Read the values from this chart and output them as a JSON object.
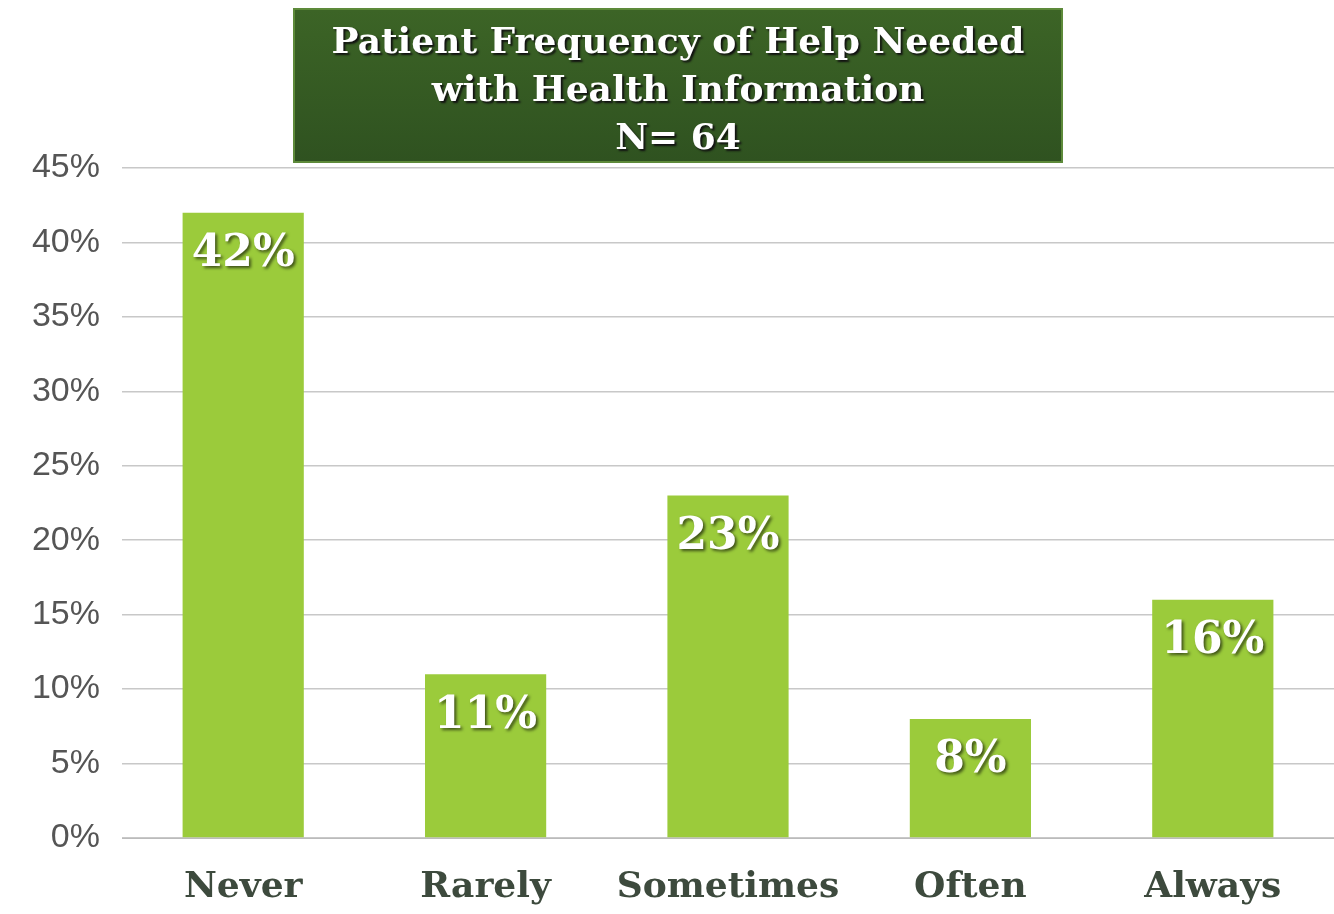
{
  "chart_data": {
    "type": "bar",
    "title": "Patient Frequency of Help Needed with Health Information",
    "subtitle": "N= 64",
    "categories": [
      "Never",
      "Rarely",
      "Sometimes",
      "Often",
      "Always"
    ],
    "values": [
      42,
      11,
      23,
      8,
      16
    ],
    "value_labels": [
      "42%",
      "11%",
      "23%",
      "8%",
      "16%"
    ],
    "color": "#9bcb3b",
    "ylim": [
      0,
      45
    ],
    "yticks": [
      {
        "value": 0,
        "label": "0%"
      },
      {
        "value": 5,
        "label": "5%"
      },
      {
        "value": 10,
        "label": "10%"
      },
      {
        "value": 15,
        "label": "15%"
      },
      {
        "value": 20,
        "label": "20%"
      },
      {
        "value": 25,
        "label": "25%"
      },
      {
        "value": 30,
        "label": "30%"
      },
      {
        "value": 35,
        "label": "35%"
      },
      {
        "value": 40,
        "label": "40%"
      },
      {
        "value": 45,
        "label": "45%"
      }
    ],
    "grid": "y",
    "legend": false
  }
}
